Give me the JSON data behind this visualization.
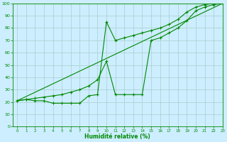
{
  "background_color": "#cceeff",
  "grid_color": "#aacccc",
  "line_color": "#008800",
  "xlabel": "Humidité relative (%)",
  "xlim": [
    -0.5,
    23
  ],
  "ylim": [
    0,
    100
  ],
  "yticks": [
    0,
    10,
    20,
    30,
    40,
    50,
    60,
    70,
    80,
    90,
    100
  ],
  "xticks": [
    0,
    1,
    2,
    3,
    4,
    5,
    6,
    7,
    8,
    9,
    10,
    11,
    12,
    13,
    14,
    15,
    16,
    17,
    18,
    19,
    20,
    21,
    22,
    23
  ],
  "line1_x": [
    0,
    1,
    2,
    3,
    4,
    5,
    6,
    7,
    8,
    9,
    10,
    11,
    12,
    13,
    14,
    15,
    16,
    17,
    18,
    19,
    20,
    21,
    22,
    23
  ],
  "line1_y": [
    21,
    22,
    21,
    21,
    19,
    19,
    19,
    19,
    25,
    26,
    85,
    70,
    72,
    74,
    76,
    78,
    80,
    83,
    87,
    93,
    97,
    99,
    100,
    100
  ],
  "line2_x": [
    0,
    23
  ],
  "line2_y": [
    21,
    100
  ],
  "line3_x": [
    0,
    1,
    2,
    3,
    4,
    5,
    6,
    7,
    8,
    9,
    10,
    11,
    12,
    13,
    14,
    15,
    16,
    17,
    18,
    19,
    20,
    21,
    22,
    23
  ],
  "line3_y": [
    21,
    22,
    23,
    24,
    25,
    26,
    28,
    30,
    33,
    38,
    53,
    26,
    26,
    26,
    26,
    70,
    72,
    76,
    80,
    86,
    94,
    97,
    99,
    100
  ]
}
